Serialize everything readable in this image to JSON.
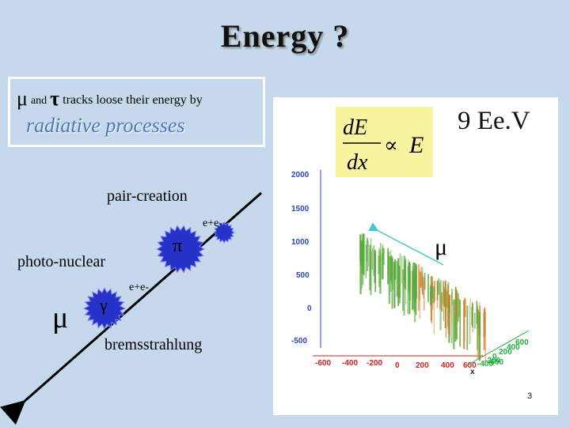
{
  "slide": {
    "title": "Energy ?",
    "page_number": "3"
  },
  "info": {
    "mu": "μ",
    "and": "and",
    "tau": "τ",
    "rest": "tracks loose their energy by",
    "radiative": "radiative processes"
  },
  "diagram": {
    "muon_symbol": "μ",
    "pair_creation": "pair-creation",
    "photo_nuclear": "photo-nuclear",
    "bremsstrahlung": "bremsstrahlung",
    "ee_upper": "e+e-",
    "ee_lower": "e+e-",
    "pi": "π",
    "gamma": "γ"
  },
  "formula": {
    "numerator": "dE",
    "denominator": "dx",
    "propto": "∝",
    "rhs": "E"
  },
  "energy_label": "9 Ee.V",
  "plot": {
    "muon_label": "μ",
    "y_ticks": [
      "2000",
      "1500",
      "1000",
      "500",
      "0",
      "-500"
    ],
    "x_ticks": [
      "-600",
      "-400",
      "-200",
      "0",
      "200",
      "400",
      "600"
    ],
    "z_ticks": [
      "600",
      "400",
      "200",
      "0",
      "-200",
      "-400",
      "-600"
    ],
    "x_axis_label": "x",
    "colors": {
      "y_axis": "#2b47c0",
      "x_axis": "#d02020",
      "z_axis": "#20b040",
      "track_green": "#5aa93b",
      "track_orange": "#e07a2a",
      "arrow": "#46c8c8"
    }
  }
}
